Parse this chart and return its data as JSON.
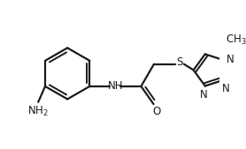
{
  "bg_color": "#ffffff",
  "line_color": "#1a1a1a",
  "line_width": 1.6,
  "font_size": 8.5,
  "figsize": [
    2.78,
    1.69
  ],
  "dpi": 100,
  "xlim": [
    -0.5,
    9.5
  ],
  "ylim": [
    -1.0,
    6.5
  ]
}
